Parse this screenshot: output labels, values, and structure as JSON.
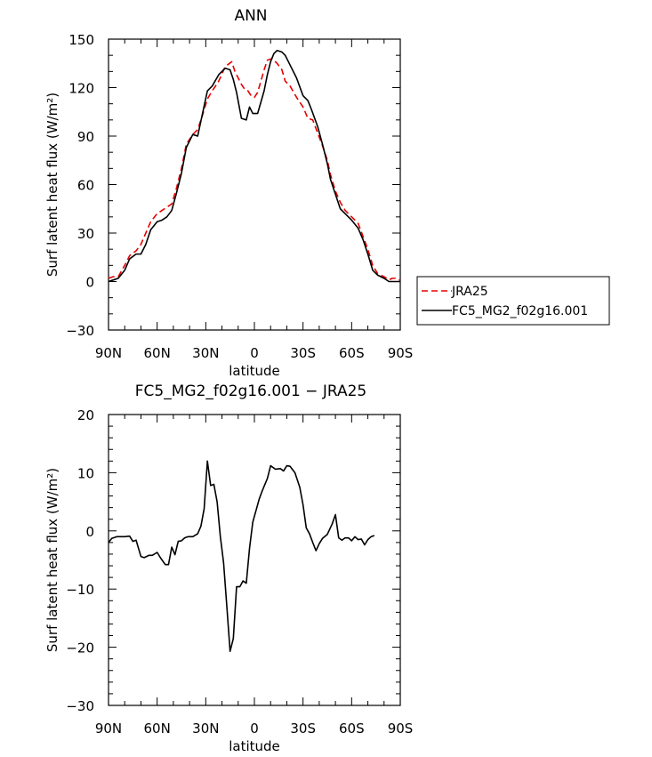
{
  "colors": {
    "model": "#000000",
    "reference": "#e60000",
    "axis": "#000000"
  },
  "chart_data": [
    {
      "type": "line",
      "title": "ANN",
      "xlabel": "latitude",
      "ylabel": "Surf latent heat flux (W/m²)",
      "xlim": [
        90,
        -90
      ],
      "ylim": [
        -30,
        150
      ],
      "x_ticks": [
        90,
        60,
        30,
        0,
        -30,
        -60,
        -90
      ],
      "x_tick_labels": [
        "90N",
        "60N",
        "30N",
        "0",
        "30S",
        "60S",
        "90S"
      ],
      "y_ticks": [
        -30,
        0,
        30,
        60,
        90,
        120,
        150
      ],
      "y_tick_labels": [
        "−30",
        "0",
        "30",
        "60",
        "90",
        "120",
        "150"
      ],
      "legend": [
        "JRA25",
        "FC5_MG2_f02g16.001"
      ],
      "legend_position": "outside-right",
      "series": [
        {
          "name": "JRA25",
          "style": "dashed",
          "color": "#e60000",
          "points": [
            [
              90,
              2
            ],
            [
              87,
              3
            ],
            [
              84,
              3
            ],
            [
              80,
              10
            ],
            [
              77,
              16
            ],
            [
              73,
              19
            ],
            [
              70,
              23
            ],
            [
              67,
              30
            ],
            [
              64,
              37
            ],
            [
              60,
              42
            ],
            [
              57,
              44
            ],
            [
              54,
              46
            ],
            [
              51,
              48
            ],
            [
              48,
              58
            ],
            [
              45,
              70
            ],
            [
              42,
              85
            ],
            [
              38,
              91
            ],
            [
              35,
              94
            ],
            [
              32,
              103
            ],
            [
              29,
              113
            ],
            [
              26,
              118
            ],
            [
              22,
              124
            ],
            [
              18,
              133
            ],
            [
              14,
              136
            ],
            [
              12,
              130
            ],
            [
              10,
              126
            ],
            [
              8,
              122
            ],
            [
              6,
              119
            ],
            [
              4,
              118
            ],
            [
              2,
              115
            ],
            [
              0,
              114
            ],
            [
              -2,
              117
            ],
            [
              -4,
              124
            ],
            [
              -6,
              131
            ],
            [
              -8,
              137
            ],
            [
              -11,
              138
            ],
            [
              -14,
              135
            ],
            [
              -17,
              131
            ],
            [
              -19,
              124
            ],
            [
              -22,
              121
            ],
            [
              -26,
              114
            ],
            [
              -30,
              108
            ],
            [
              -33,
              101
            ],
            [
              -36,
              100
            ],
            [
              -39,
              92
            ],
            [
              -42,
              84
            ],
            [
              -45,
              75
            ],
            [
              -47,
              66
            ],
            [
              -50,
              56
            ],
            [
              -53,
              49
            ],
            [
              -56,
              44
            ],
            [
              -60,
              40
            ],
            [
              -64,
              36
            ],
            [
              -67,
              28
            ],
            [
              -70,
              20
            ],
            [
              -73,
              10
            ],
            [
              -76,
              5
            ],
            [
              -80,
              3
            ],
            [
              -83,
              1
            ],
            [
              -85,
              2
            ],
            [
              -87,
              2
            ],
            [
              -89,
              1
            ],
            [
              -90,
              1
            ]
          ]
        },
        {
          "name": "FC5_MG2_f02g16.001",
          "style": "solid",
          "color": "#000000",
          "points": [
            [
              90,
              0
            ],
            [
              87,
              1
            ],
            [
              84,
              2
            ],
            [
              80,
              7
            ],
            [
              77,
              14
            ],
            [
              73,
              17
            ],
            [
              70,
              17
            ],
            [
              67,
              23
            ],
            [
              64,
              32
            ],
            [
              60,
              37
            ],
            [
              57,
              38
            ],
            [
              54,
              40
            ],
            [
              51,
              44
            ],
            [
              48,
              55
            ],
            [
              45,
              67
            ],
            [
              42,
              83
            ],
            [
              38,
              91
            ],
            [
              35,
              90
            ],
            [
              32,
              104
            ],
            [
              29,
              118
            ],
            [
              26,
              121
            ],
            [
              22,
              128
            ],
            [
              18,
              132
            ],
            [
              15,
              131
            ],
            [
              13,
              125
            ],
            [
              11,
              117
            ],
            [
              8,
              101
            ],
            [
              5,
              100
            ],
            [
              3,
              108
            ],
            [
              1,
              104
            ],
            [
              -2,
              104
            ],
            [
              -4,
              111
            ],
            [
              -6,
              118
            ],
            [
              -8,
              128
            ],
            [
              -10,
              136
            ],
            [
              -12,
              141
            ],
            [
              -14,
              143
            ],
            [
              -17,
              142
            ],
            [
              -19,
              140
            ],
            [
              -22,
              134
            ],
            [
              -26,
              126
            ],
            [
              -30,
              115
            ],
            [
              -33,
              112
            ],
            [
              -35,
              107
            ],
            [
              -39,
              96
            ],
            [
              -42,
              85
            ],
            [
              -45,
              73
            ],
            [
              -47,
              63
            ],
            [
              -50,
              54
            ],
            [
              -53,
              45
            ],
            [
              -56,
              42
            ],
            [
              -60,
              38
            ],
            [
              -64,
              33
            ],
            [
              -67,
              26
            ],
            [
              -70,
              17
            ],
            [
              -73,
              7
            ],
            [
              -76,
              4
            ],
            [
              -80,
              2
            ],
            [
              -83,
              0
            ],
            [
              -85,
              0
            ],
            [
              -87,
              0
            ],
            [
              -89,
              0
            ],
            [
              -90,
              0
            ]
          ]
        }
      ]
    },
    {
      "type": "line",
      "title": "FC5_MG2_f02g16.001 − JRA25",
      "xlabel": "latitude",
      "ylabel": "Surf latent heat flux (W/m²)",
      "xlim": [
        90,
        -90
      ],
      "ylim": [
        -30,
        20
      ],
      "x_ticks": [
        90,
        60,
        30,
        0,
        -30,
        -60,
        -90
      ],
      "x_tick_labels": [
        "90N",
        "60N",
        "30N",
        "0",
        "30S",
        "60S",
        "90S"
      ],
      "y_ticks": [
        -30,
        -20,
        -10,
        0,
        10,
        20
      ],
      "y_tick_labels": [
        "−30",
        "−20",
        "−10",
        "0",
        "10",
        "20"
      ],
      "series": [
        {
          "name": "FC5_MG2_f02g16.001 − JRA25",
          "style": "solid",
          "color": "#000000",
          "points": [
            [
              90,
              -2
            ],
            [
              88,
              -1.3
            ],
            [
              85,
              -1
            ],
            [
              80,
              -1
            ],
            [
              77,
              -0.9
            ],
            [
              75,
              -1.8
            ],
            [
              73,
              -1.6
            ],
            [
              70,
              -4.4
            ],
            [
              68,
              -4.6
            ],
            [
              65,
              -4.2
            ],
            [
              63,
              -4.2
            ],
            [
              60,
              -3.7
            ],
            [
              58,
              -4.6
            ],
            [
              55,
              -5.8
            ],
            [
              53,
              -5.8
            ],
            [
              51,
              -2.8
            ],
            [
              49,
              -4.1
            ],
            [
              47,
              -1.8
            ],
            [
              45,
              -1.7
            ],
            [
              43,
              -1.2
            ],
            [
              41,
              -1
            ],
            [
              38,
              -1
            ],
            [
              35,
              -0.5
            ],
            [
              33,
              0.8
            ],
            [
              31,
              3.8
            ],
            [
              29,
              12
            ],
            [
              27,
              7.8
            ],
            [
              25,
              8
            ],
            [
              23,
              5
            ],
            [
              21,
              -1
            ],
            [
              19,
              -5.5
            ],
            [
              17,
              -13
            ],
            [
              15,
              -20.7
            ],
            [
              13,
              -18.5
            ],
            [
              11,
              -9.6
            ],
            [
              9,
              -9.6
            ],
            [
              7,
              -8.6
            ],
            [
              5,
              -9
            ],
            [
              3,
              -3
            ],
            [
              1,
              1.5
            ],
            [
              -1,
              3.5
            ],
            [
              -3,
              5.5
            ],
            [
              -5,
              7
            ],
            [
              -8,
              9
            ],
            [
              -10,
              11.2
            ],
            [
              -13,
              10.6
            ],
            [
              -16,
              10.7
            ],
            [
              -18,
              10.3
            ],
            [
              -20,
              11.2
            ],
            [
              -22,
              11.1
            ],
            [
              -25,
              10
            ],
            [
              -28,
              7.5
            ],
            [
              -30,
              4.5
            ],
            [
              -32,
              0.5
            ],
            [
              -34,
              -0.5
            ],
            [
              -36,
              -2
            ],
            [
              -38,
              -3.4
            ],
            [
              -40,
              -2.2
            ],
            [
              -42,
              -1.3
            ],
            [
              -45,
              -0.6
            ],
            [
              -48,
              1.2
            ],
            [
              -50,
              2.8
            ],
            [
              -52,
              -1.2
            ],
            [
              -54,
              -1.6
            ],
            [
              -56,
              -1.2
            ],
            [
              -58,
              -1.2
            ],
            [
              -60,
              -1.7
            ],
            [
              -62,
              -1
            ],
            [
              -64,
              -1.5
            ],
            [
              -66,
              -1.4
            ],
            [
              -68,
              -2.4
            ],
            [
              -70,
              -1.5
            ],
            [
              -72,
              -1
            ],
            [
              -74,
              -0.8
            ]
          ]
        }
      ]
    }
  ]
}
